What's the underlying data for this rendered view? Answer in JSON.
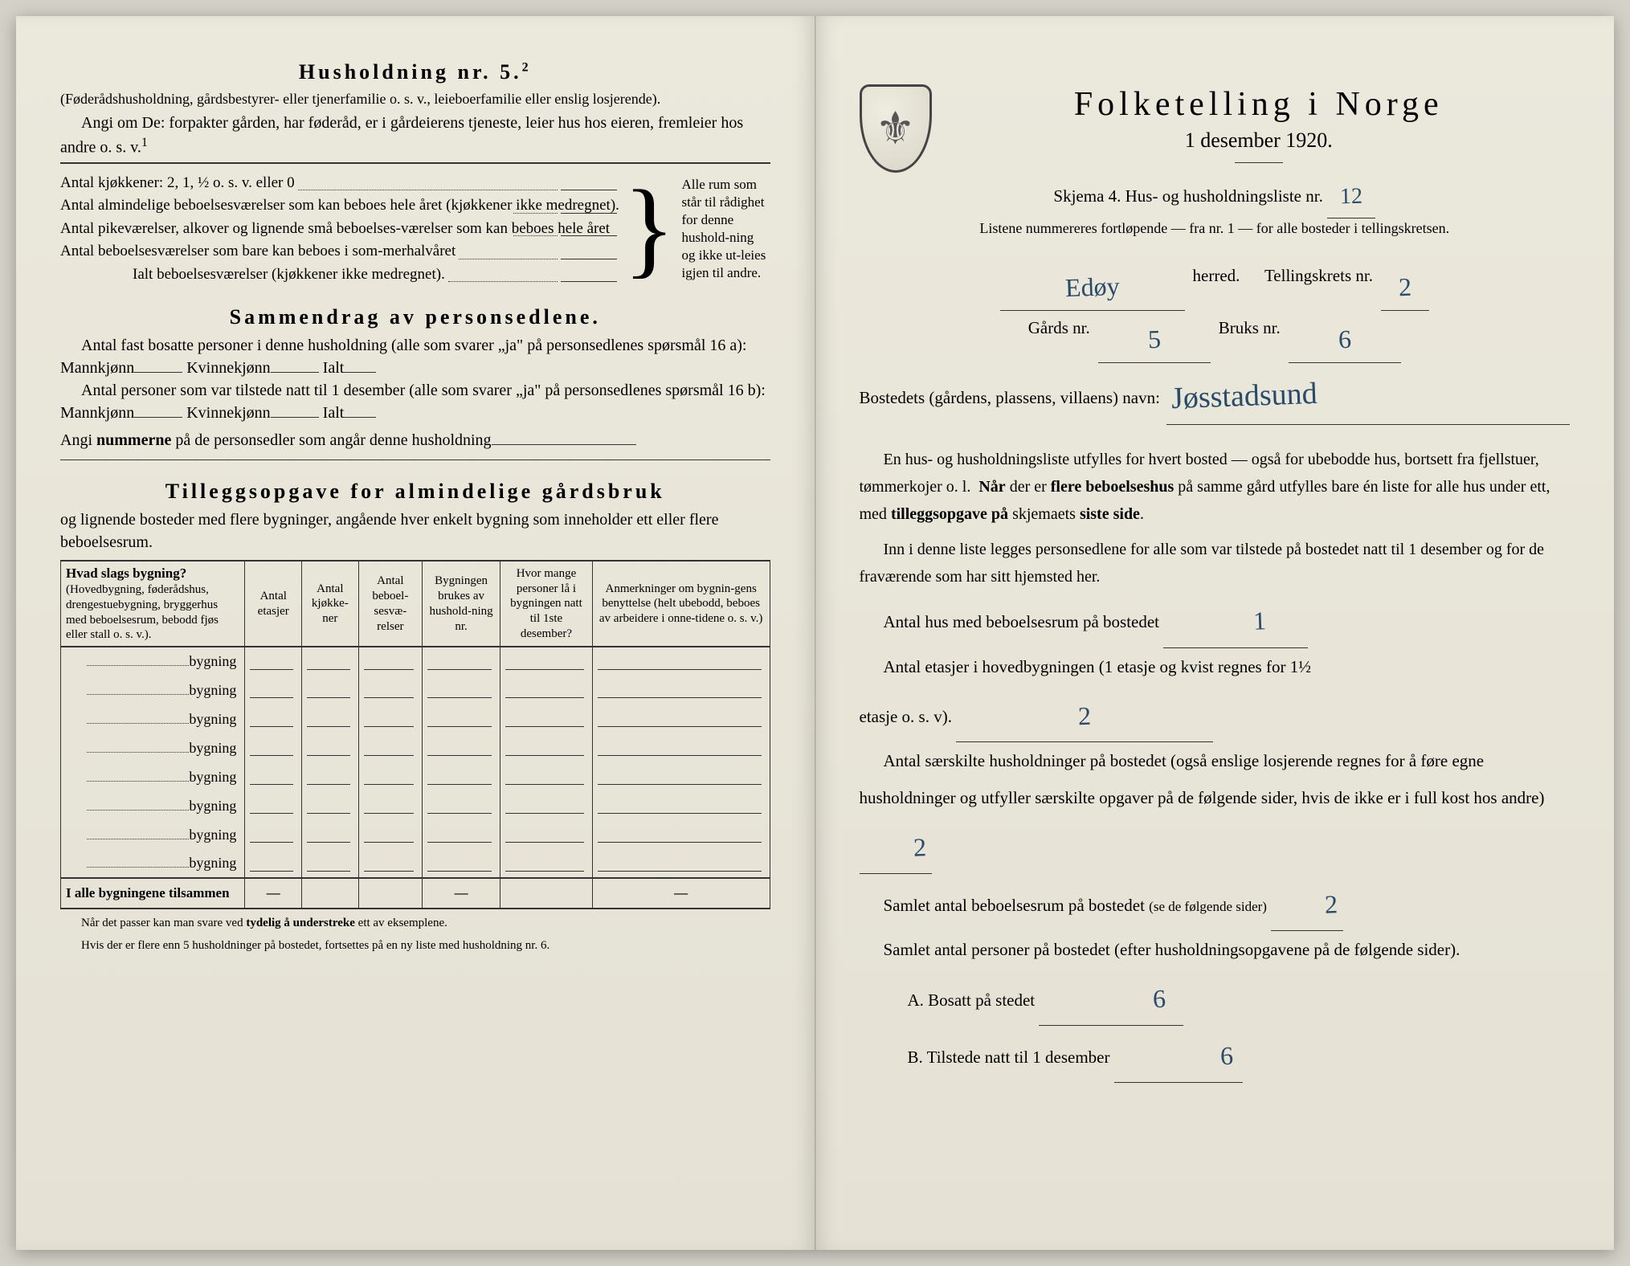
{
  "colors": {
    "paper": "#e8e5d8",
    "ink": "#222222",
    "handwriting": "#2a4a6a"
  },
  "left": {
    "h5_title": "Husholdning nr. 5.",
    "h5_sup": "2",
    "h5_sub": "(Føderådshusholdning, gårdsbestyrer- eller tjenerfamilie o. s. v., leieboerfamilie eller enslig losjerende).",
    "h5_line1": "Angi om De: forpakter gården, har føderåd, er i gårdeierens tjeneste, leier hus hos eieren, fremleier hos andre o. s. v.",
    "h5_line1_sup": "1",
    "kitchens_label": "Antal kjøkkener: 2, 1, ½ o. s. v. eller 0",
    "rooms1": "Antal almindelige beboelsesværelser som kan beboes hele året (kjøkkener ikke medregnet).",
    "rooms2": "Antal pikeværelser, alkover og lignende små beboelses-værelser som kan beboes hele året",
    "rooms3": "Antal beboelsesværelser som bare kan beboes i som-merhalvåret",
    "rooms_total": "Ialt beboelsesværelser  (kjøkkener ikke medregnet).",
    "side_note": "Alle rum som står til rådighet for denne hushold-ning og ikke ut-leies igjen til andre.",
    "summary_title": "Sammendrag av personsedlene.",
    "summary1a": "Antal fast bosatte personer i denne husholdning (alle som svarer „ja\" på personsedlenes spørsmål 16 a):",
    "summary1b": "Antal personer som var tilstede natt til 1 desember (alle som svarer „ja\" på personsedlenes spørsmål 16 b):",
    "mannkjonn": "Mannkjønn",
    "kvinnekjonn": "Kvinnekjønn",
    "ialt": "Ialt",
    "summary_note": "Angi nummerne på de personsedler som angår denne husholdning",
    "tillegg_title": "Tilleggsopgave for almindelige gårdsbruk",
    "tillegg_sub": "og lignende bosteder med flere bygninger, angående hver enkelt bygning som inneholder ett eller flere beboelsesrum.",
    "table": {
      "headers": [
        {
          "bold": "Hvad slags bygning?",
          "sub": "(Hovedbygning, føderådshus, drengestuebygning, bryggerhus med beboelsesrum, bebodd fjøs eller stall o. s. v.)."
        },
        {
          "label": "Antal etasjer"
        },
        {
          "label": "Antal kjøkke-ner"
        },
        {
          "label": "Antal beboel-sesvæ-relser"
        },
        {
          "label": "Bygningen brukes av hushold-ning nr."
        },
        {
          "label": "Hvor mange personer lå i bygningen natt til 1ste desember?"
        },
        {
          "label": "Anmerkninger om bygnin-gens benyttelse (helt ubebodd, beboes av arbeidere i onne-tidene o. s. v.)"
        }
      ],
      "row_label": "bygning",
      "row_count": 8,
      "footer": "I alle bygningene tilsammen"
    },
    "footnote1": "Når det passer kan man svare ved tydelig å understreke ett av eksemplene.",
    "footnote2": "Hvis der er flere enn 5 husholdninger på bostedet, fortsettes på en ny liste med husholdning nr. 6."
  },
  "right": {
    "title": "Folketelling i Norge",
    "date": "1 desember 1920.",
    "skjema": "Skjema 4.  Hus- og husholdningsliste nr.",
    "skjema_value": "12",
    "listene": "Listene nummereres fortløpende — fra nr. 1 — for alle bosteder i tellingskretsen.",
    "herred_value": "Edøy",
    "herred_label": "herred.",
    "tellingskrets_label": "Tellingskrets nr.",
    "tellingskrets_value": "2",
    "gards_label": "Gårds nr.",
    "gards_value": "5",
    "bruks_label": "Bruks nr.",
    "bruks_value": "6",
    "bosted_label": "Bostedets (gårdens, plassens, villaens) navn:",
    "bosted_value": "Jøsstadsund",
    "para1": "En hus- og husholdningsliste utfylles for hvert bosted — også for ubebodde hus, bortsett fra fjellstuer, tømmerkojer o. l.  Når der er flere beboelseshus på samme gård utfylles bare én liste for alle hus under ett, med tilleggsopgave på skjemaets siste side.",
    "para2": "Inn i denne liste legges personsedlene for alle som var tilstede på bostedet natt til 1 desember og for de fraværende som har sitt hjemsted her.",
    "row1_label": "Antal hus med beboelsesrum på bostedet",
    "row1_value": "1",
    "row2_label_a": "Antal etasjer i hovedbygningen (1 etasje og kvist regnes for 1½",
    "row2_label_b": "etasje o. s. v).",
    "row2_value": "2",
    "row3": "Antal særskilte husholdninger på bostedet (også enslige losjerende regnes for å føre egne husholdninger og utfyller særskilte opgaver på de følgende sider, hvis de ikke er i full kost hos andre)",
    "row3_value": "2",
    "row4_label": "Samlet antal beboelsesrum på bostedet",
    "row4_note": "(se de følgende sider)",
    "row4_value": "2",
    "row5": "Samlet antal personer på bostedet (efter husholdningsopgavene på de følgende sider).",
    "rowA_label": "A.  Bosatt på stedet",
    "rowA_value": "6",
    "rowB_label": "B.  Tilstede natt til 1 desember",
    "rowB_value": "6"
  }
}
